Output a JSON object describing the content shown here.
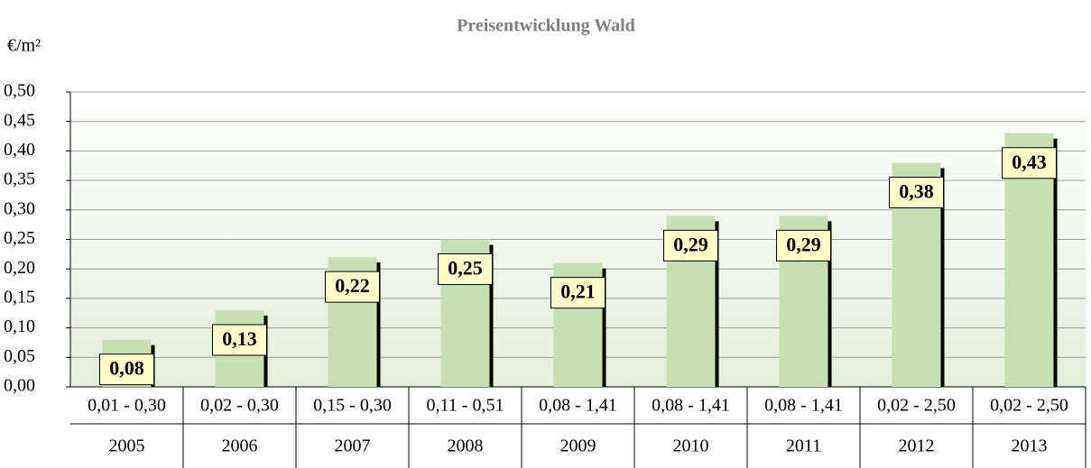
{
  "chart_data": {
    "type": "bar",
    "title": "Preisentwicklung Wald",
    "y_label": "€/m²",
    "categories": [
      "2005",
      "2006",
      "2007",
      "2008",
      "2009",
      "2010",
      "2011",
      "2012",
      "2013"
    ],
    "ranges": [
      "0,01 - 0,30",
      "0,02 - 0,30",
      "0,15 - 0,30",
      "0,11 - 0,51",
      "0,08 - 1,41",
      "0,08 - 1,41",
      "0,08 - 1,41",
      "0,02 - 2,50",
      "0,02 - 2,50"
    ],
    "values": [
      0.08,
      0.13,
      0.22,
      0.25,
      0.21,
      0.29,
      0.29,
      0.38,
      0.43
    ],
    "value_labels": [
      "0,08",
      "0,13",
      "0,22",
      "0,25",
      "0,21",
      "0,29",
      "0,29",
      "0,38",
      "0,43"
    ],
    "color": "#c6e0b4",
    "ylim": [
      0,
      0.5
    ],
    "yticks": [
      {
        "value": 0,
        "label": "0,00"
      },
      {
        "value": 0.05,
        "label": "0,05"
      },
      {
        "value": 0.1,
        "label": "0,10"
      },
      {
        "value": 0.15,
        "label": "0,15"
      },
      {
        "value": 0.2,
        "label": "0,20"
      },
      {
        "value": 0.25,
        "label": "0,25"
      },
      {
        "value": 0.3,
        "label": "0,30"
      },
      {
        "value": 0.35,
        "label": "0,35"
      },
      {
        "value": 0.4,
        "label": "0,40"
      },
      {
        "value": 0.45,
        "label": "0,45"
      },
      {
        "value": 0.5,
        "label": "0,50"
      }
    ],
    "grid": true
  }
}
